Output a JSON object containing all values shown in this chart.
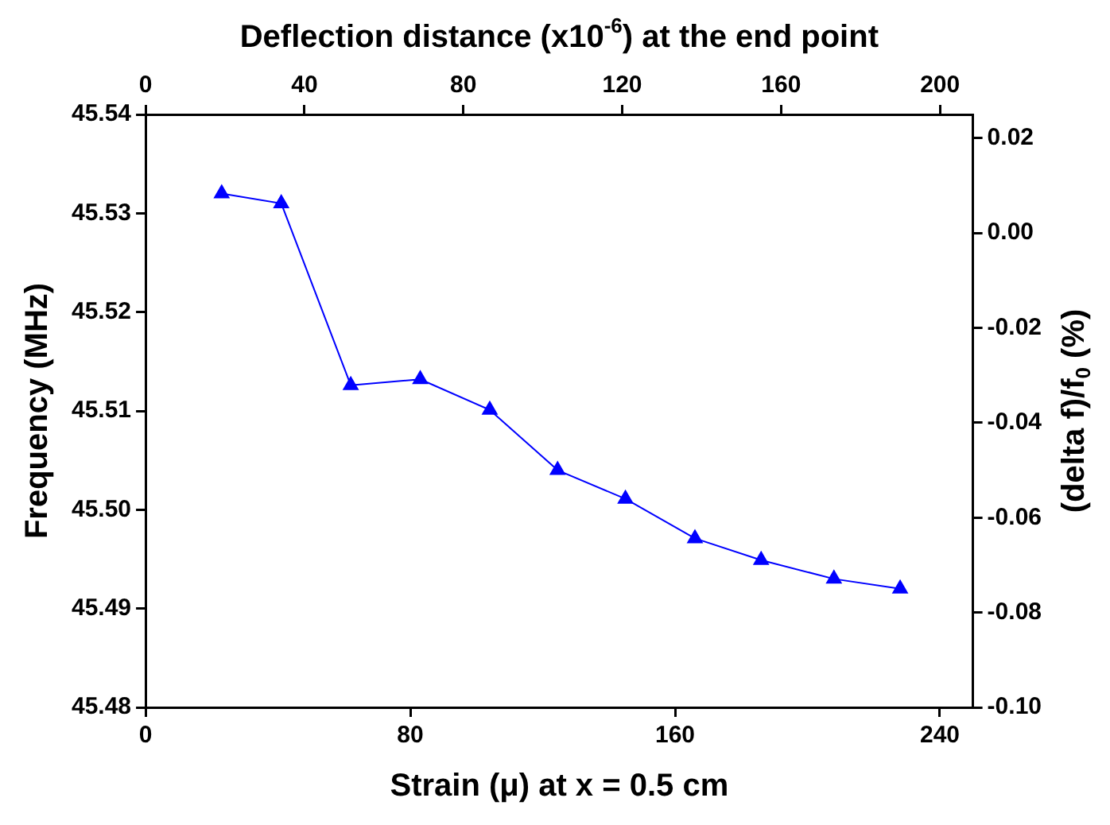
{
  "chart_data": {
    "type": "line",
    "xlabel": "Strain (μ) at x = 0.5 cm",
    "ylabel": "Frequency (MHz)",
    "y2label": "(delta f)/f$_{0}$ (%)",
    "x2label": "Deflection distance (x10$^{-6}$) at the end point",
    "x": [
      23,
      41,
      62,
      83,
      104,
      124.5,
      145,
      166,
      186,
      208,
      228
    ],
    "series": [
      {
        "color": "#0000ff",
        "values": [
          45.532,
          45.531,
          45.5126,
          45.5132,
          45.5101,
          45.504,
          45.5011,
          45.4971,
          45.4949,
          45.493,
          45.492
        ]
      }
    ],
    "xlim": [
      0,
      250
    ],
    "xticks": [
      0,
      80,
      160,
      240
    ],
    "x2lim": [
      0,
      208.3
    ],
    "x2ticks": [
      0,
      40,
      80,
      120,
      160,
      200
    ],
    "ylim": [
      45.48,
      45.54
    ],
    "yticks": [
      {
        "value": 45.48,
        "label": "45.48"
      },
      {
        "value": 45.49,
        "label": "45.49"
      },
      {
        "value": 45.5,
        "label": "45.50"
      },
      {
        "value": 45.51,
        "label": "45.51"
      },
      {
        "value": 45.52,
        "label": "45.52"
      },
      {
        "value": 45.53,
        "label": "45.53"
      },
      {
        "value": 45.54,
        "label": "45.54"
      }
    ],
    "y2lim": [
      -0.1,
      0.025
    ],
    "y2ticks": [
      {
        "value": -0.1,
        "label": "-0.10"
      },
      {
        "value": -0.08,
        "label": "-0.08"
      },
      {
        "value": -0.06,
        "label": "-0.06"
      },
      {
        "value": -0.04,
        "label": "-0.04"
      },
      {
        "value": -0.02,
        "label": "-0.02"
      },
      {
        "value": 0,
        "label": "0.00"
      },
      {
        "value": 0.02,
        "label": "0.02"
      }
    ],
    "grid": false,
    "legend": false,
    "marker": "triangle",
    "line_style": "solid"
  }
}
